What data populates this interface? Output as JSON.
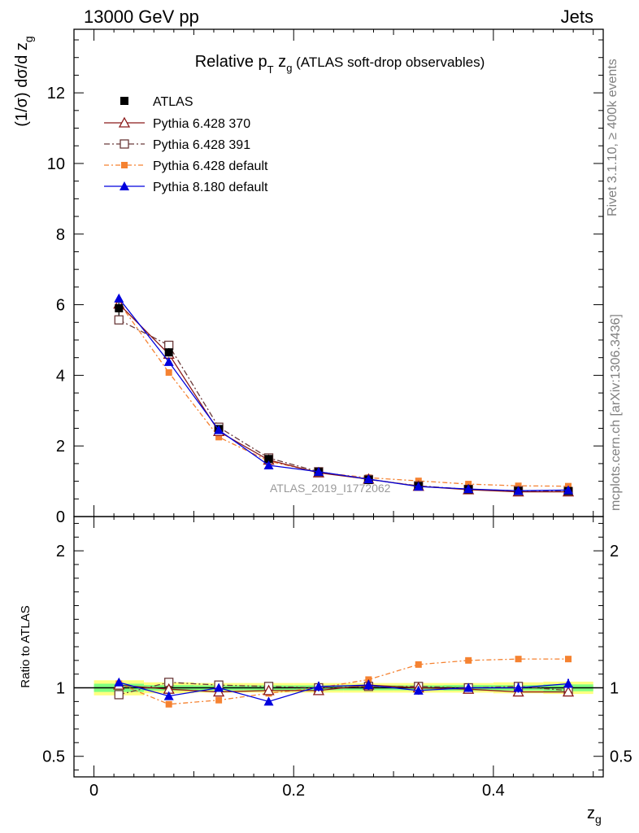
{
  "header": {
    "left": "13000 GeV pp",
    "right": "Jets"
  },
  "side_labels": {
    "rivet": "Rivet 3.1.10, ≥ 400k events",
    "mcplots": "mcplots.cern.ch [arXiv:1306.3436]"
  },
  "colors": {
    "ATLAS": "#000000",
    "Pythia 6.428 370": "#8b1a1a",
    "Pythia 6.428 391": "#6b3a3a",
    "Pythia 6.428 default": "#f58231",
    "Pythia 8.180 default": "#0000dd",
    "band_outer": "#ffff80",
    "band_inner": "#80ff80"
  },
  "chart_data": [
    {
      "type": "line",
      "title": "Relative p_T z_g (ATLAS soft-drop observables)",
      "title_parts": {
        "pre": "Relative p",
        "sub1": "T",
        "mid": " z",
        "sub2": "g",
        "post": " (ATLAS soft-drop observables)"
      },
      "ylabel": "(1/σ) dσ/d z_g",
      "watermark": "ATLAS_2019_I1772062",
      "xlim": [
        -0.02,
        0.51
      ],
      "ylim": [
        0,
        13.8
      ],
      "yticks": [
        0,
        2,
        4,
        6,
        8,
        10,
        12
      ],
      "ytick_labels": [
        "0",
        "2",
        "4",
        "6",
        "8",
        "10",
        "12"
      ],
      "legend_position": "top-left",
      "x": [
        0.025,
        0.075,
        0.125,
        0.175,
        0.225,
        0.275,
        0.325,
        0.375,
        0.425,
        0.475
      ],
      "series": [
        {
          "name": "ATLAS",
          "marker": "square-filled",
          "values": [
            5.9,
            4.65,
            2.48,
            1.63,
            1.26,
            1.04,
            0.86,
            0.77,
            0.72,
            0.72
          ],
          "errors": [
            0.2,
            0.12,
            0.06,
            0.05,
            0.04,
            0.03,
            0.03,
            0.03,
            0.03,
            0.03
          ]
        },
        {
          "name": "Pythia 6.428 370",
          "marker": "triangle-open",
          "values": [
            6.02,
            4.6,
            2.41,
            1.6,
            1.24,
            1.06,
            0.86,
            0.76,
            0.7,
            0.7
          ]
        },
        {
          "name": "Pythia 6.428 391",
          "marker": "square-open",
          "values": [
            5.57,
            4.85,
            2.53,
            1.66,
            1.27,
            1.05,
            0.87,
            0.77,
            0.73,
            0.71
          ]
        },
        {
          "name": "Pythia 6.428 default",
          "marker": "square-filled-small",
          "values": [
            6.06,
            4.08,
            2.25,
            1.57,
            1.25,
            1.1,
            1.01,
            0.92,
            0.87,
            0.86
          ]
        },
        {
          "name": "Pythia 8.180 default",
          "marker": "triangle-filled",
          "values": [
            6.18,
            4.38,
            2.45,
            1.45,
            1.27,
            1.06,
            0.85,
            0.78,
            0.73,
            0.75
          ]
        }
      ]
    },
    {
      "type": "line",
      "ylabel": "Ratio to ATLAS",
      "xlabel": "z_g",
      "xlabel_parts": {
        "main": "z",
        "sub": "g"
      },
      "xlim": [
        -0.02,
        0.51
      ],
      "ylim": [
        0.35,
        2.25
      ],
      "xticks": [
        0,
        0.2,
        0.4
      ],
      "xtick_labels": [
        "0",
        "0.2",
        "0.4"
      ],
      "yticks": [
        0.5,
        1,
        2
      ],
      "ytick_labels": [
        "0.5",
        "1",
        "2"
      ],
      "x": [
        0.025,
        0.075,
        0.125,
        0.175,
        0.225,
        0.275,
        0.325,
        0.375,
        0.425,
        0.475
      ],
      "bands": {
        "outer": [
          0.055,
          0.04,
          0.035,
          0.035,
          0.035,
          0.035,
          0.035,
          0.035,
          0.04,
          0.045
        ],
        "inner": [
          0.03,
          0.02,
          0.018,
          0.018,
          0.018,
          0.018,
          0.018,
          0.02,
          0.02,
          0.025
        ]
      },
      "series": [
        {
          "name": "Pythia 6.428 370",
          "values": [
            1.02,
            0.99,
            0.97,
            0.98,
            0.98,
            1.02,
            1.0,
            0.99,
            0.97,
            0.97
          ]
        },
        {
          "name": "Pythia 6.428 391",
          "values": [
            0.95,
            1.04,
            1.02,
            1.01,
            1.0,
            1.01,
            1.01,
            1.0,
            1.01,
            0.98
          ]
        },
        {
          "name": "Pythia 6.428 default",
          "values": [
            1.03,
            0.88,
            0.91,
            0.96,
            1.0,
            1.06,
            1.17,
            1.2,
            1.21,
            1.21
          ]
        },
        {
          "name": "Pythia 8.180 default",
          "values": [
            1.04,
            0.94,
            1.0,
            0.9,
            1.01,
            1.02,
            0.98,
            1.0,
            1.0,
            1.03
          ],
          "errors": [
            0.02,
            0.02,
            0.02,
            0.025,
            0.035,
            0.035,
            0.03,
            0.03,
            0.035,
            0.035
          ]
        }
      ]
    }
  ]
}
